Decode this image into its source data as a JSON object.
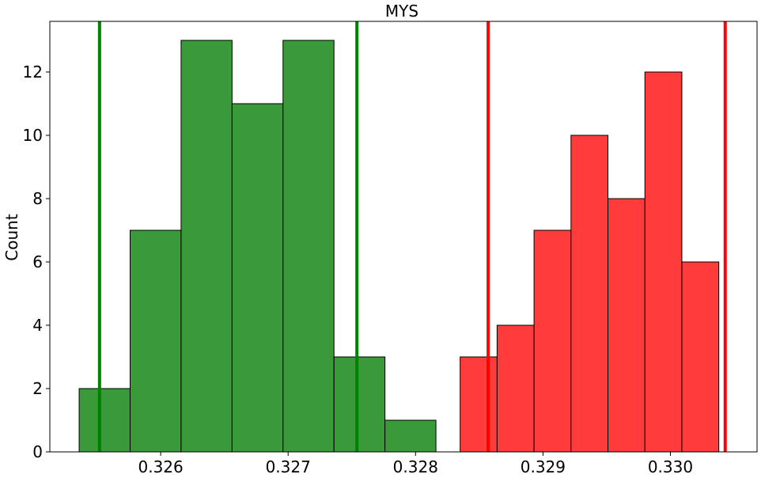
{
  "chart_data": {
    "type": "histogram",
    "title": "MYS",
    "xlabel": "",
    "ylabel": "Count",
    "xlim": [
      0.32513,
      0.33068
    ],
    "ylim": [
      0,
      13.6
    ],
    "xticks": [
      0.326,
      0.327,
      0.328,
      0.329,
      0.33
    ],
    "xtick_labels": [
      "0.326",
      "0.327",
      "0.328",
      "0.329",
      "0.330"
    ],
    "yticks": [
      0,
      2,
      4,
      6,
      8,
      10,
      12
    ],
    "ytick_labels": [
      "0",
      "2",
      "4",
      "6",
      "8",
      "10",
      "12"
    ],
    "grid": false,
    "series": [
      {
        "color": "#3a9a3a",
        "edges": [
          0.32536,
          0.32576,
          0.32616,
          0.32656,
          0.32696,
          0.32736,
          0.32776,
          0.32816
        ],
        "counts": [
          2,
          7,
          13,
          11,
          13,
          3,
          1
        ],
        "vlines": [
          0.32552,
          0.32754
        ]
      },
      {
        "color": "#ff3b3b",
        "edges": [
          0.32835,
          0.32864,
          0.32893,
          0.32922,
          0.32951,
          0.3298,
          0.33009,
          0.33038
        ],
        "counts": [
          3,
          4,
          7,
          10,
          8,
          12,
          6
        ],
        "vlines": [
          0.32857,
          0.33043
        ]
      }
    ],
    "vline_colors": [
      "#008000",
      "#ff0000"
    ]
  }
}
